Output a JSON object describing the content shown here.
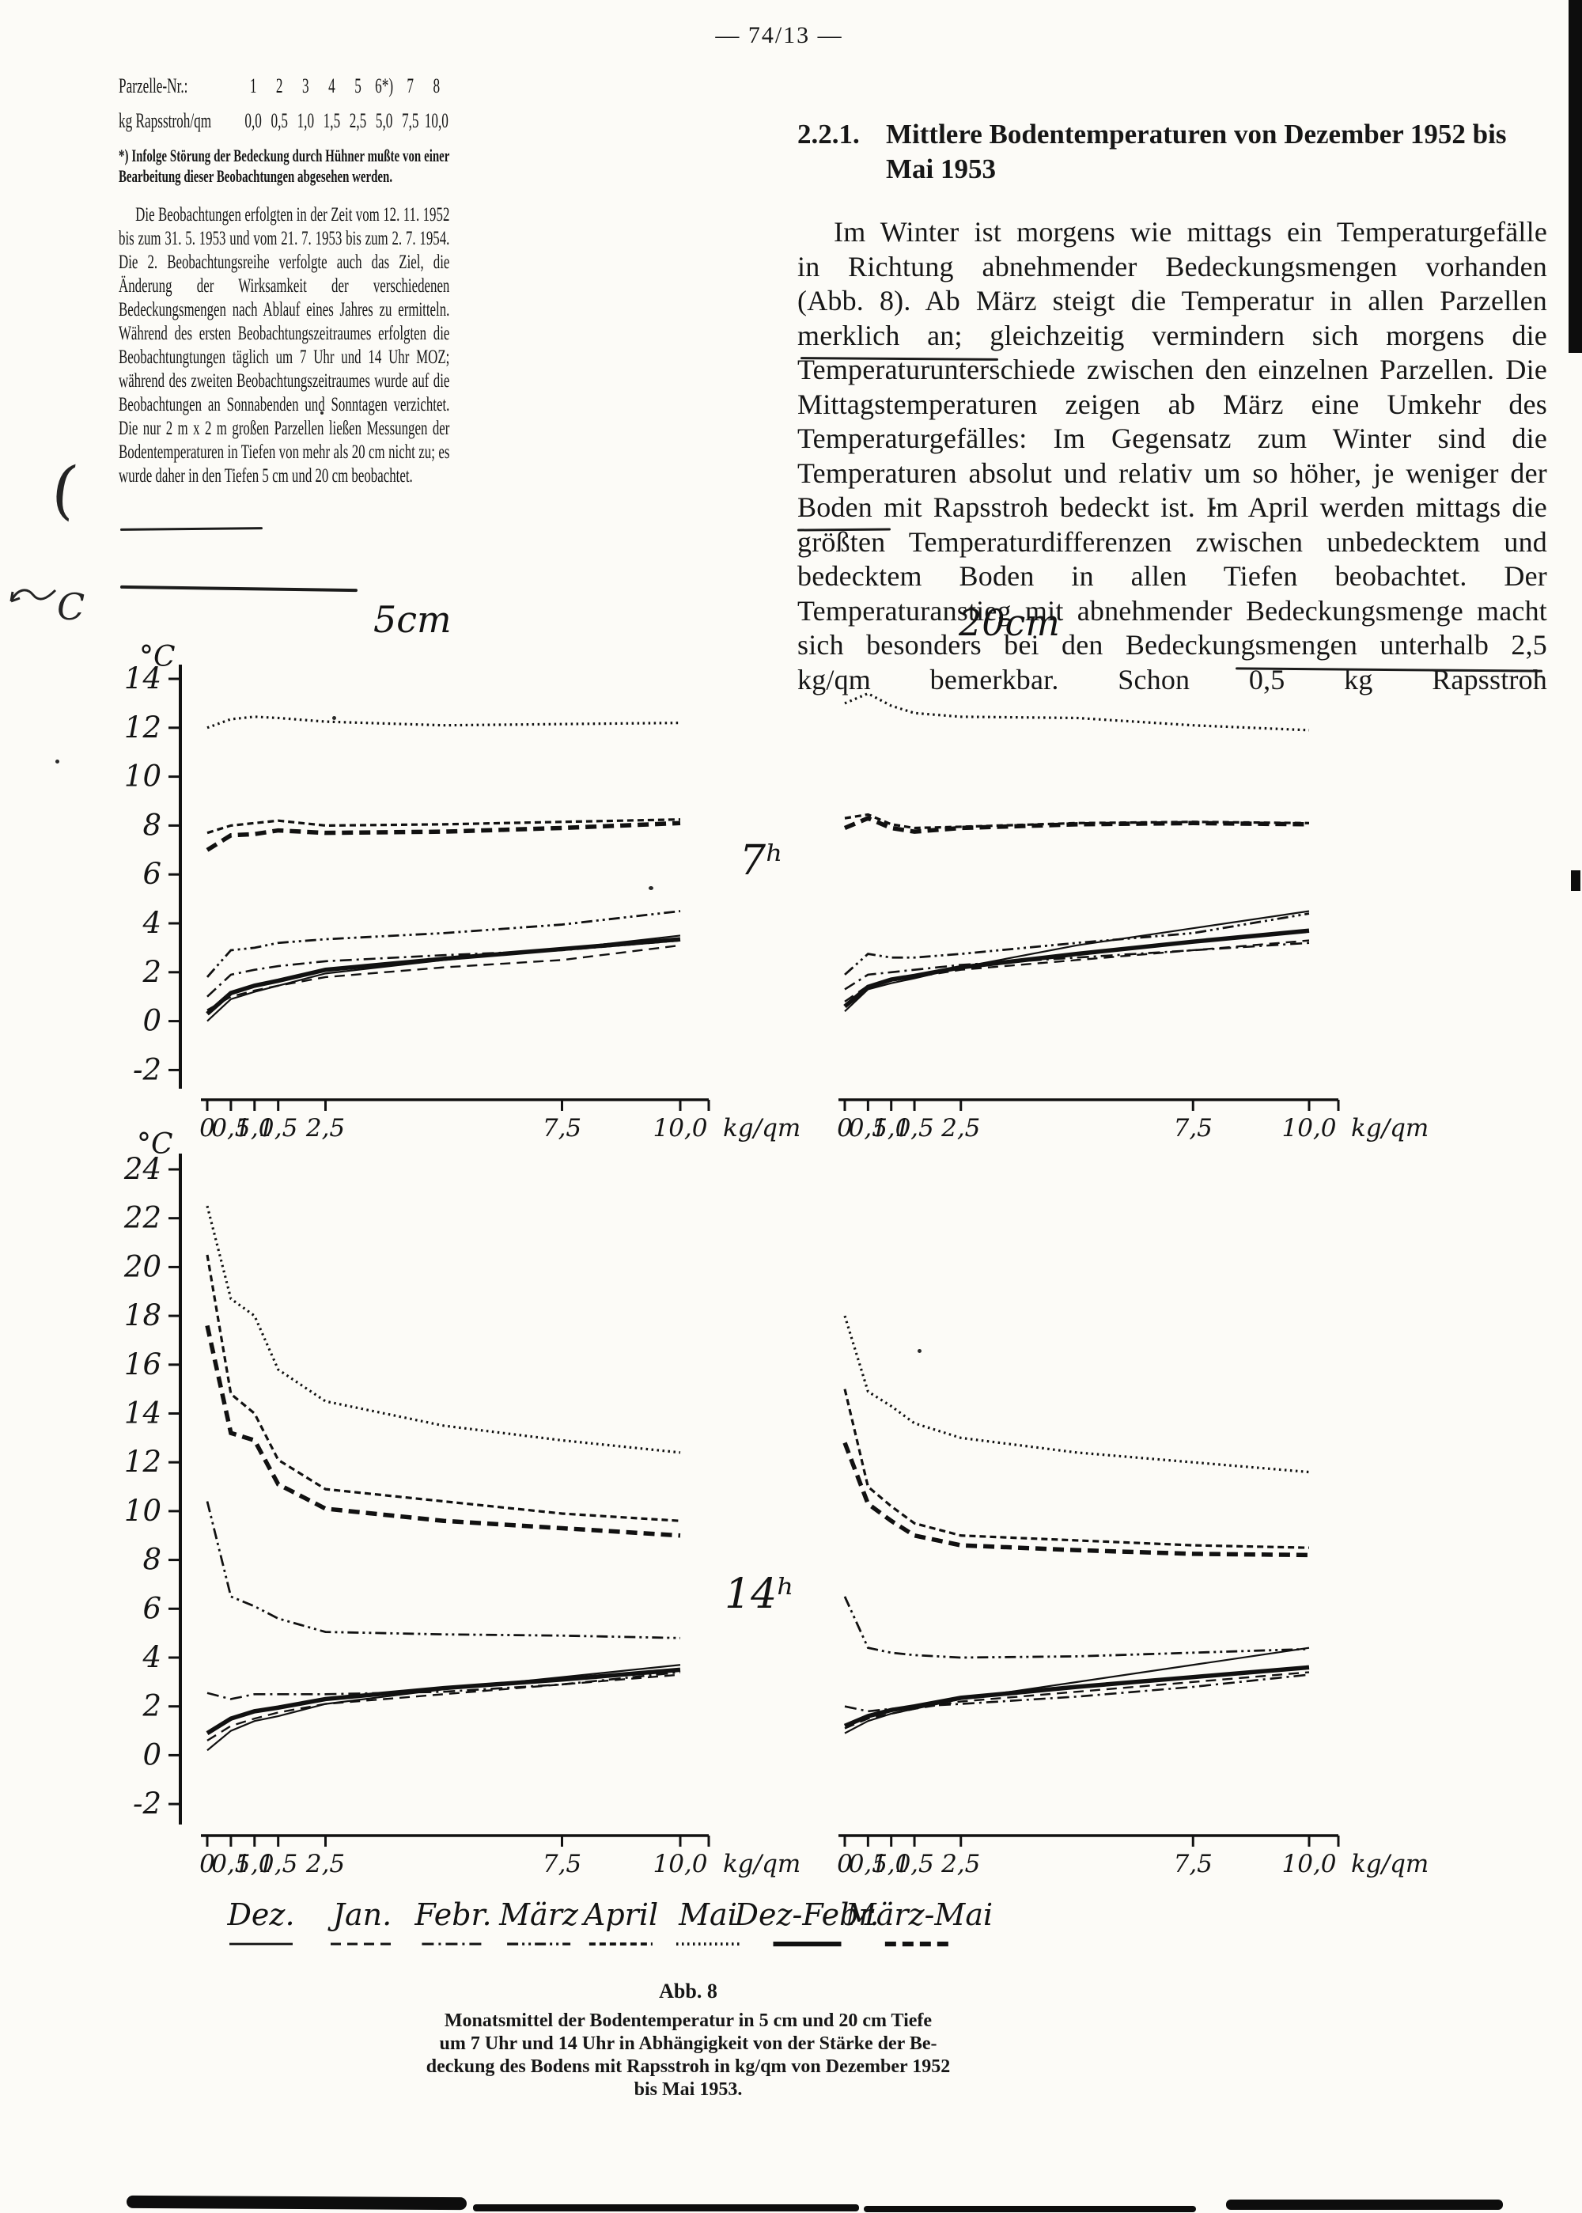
{
  "page": {
    "header": "— 74/13 —"
  },
  "intro_table": {
    "row1_label": "Parzelle-Nr.:",
    "row1_values": [
      "1",
      "2",
      "3",
      "4",
      "5",
      "6*)",
      "7",
      "8"
    ],
    "row2_label": "kg Rapsstroh/qm",
    "row2_values": [
      "0,0",
      "0,5",
      "1,0",
      "1,5",
      "2,5",
      "5,0",
      "7,5",
      "10,0"
    ]
  },
  "left_column": {
    "footnote": "*) Infolge Störung der Bedeckung durch Hühner mußte von einer Bearbeitung dieser Beobachtungen abgesehen werden.",
    "paragraph": "Die Beobachtungen erfolgten in der Zeit vom 12. 11. 1952 bis zum 31. 5. 1953 und vom 21. 7. 1953 bis zum 2. 7. 1954. Die 2. Beobachtungsreihe verfolgte auch das Ziel, die Änderung der Wirksamkeit der verschiedenen Bedeckungsmengen nach Ablauf eines Jahres zu ermitteln. Während des ersten Beobachtungszeitraumes erfolgten die Beobachtungtungen täglich um 7 Uhr und 14 Uhr MOZ; während des zweiten Beobachtungszeitraumes wurde auf die Beobachtungen an Sonnabenden und Sonntagen verzichtet. Die nur 2 m x 2 m großen Parzellen ließen Messungen der Bodentemperaturen in Tiefen von mehr als 20 cm nicht zu; es wurde daher in den Tiefen 5 cm und 20 cm beobachtet."
  },
  "right_column": {
    "section_number": "2.2.1.",
    "section_title": "Mittlere Bodentemperaturen von Dezember 1952 bis Mai 1953",
    "paragraph": "Im Winter ist morgens wie mittags ein Temperaturgefälle in Richtung abnehmender Bedeckungsmengen vorhanden (Abb. 8). Ab März steigt die Temperatur in allen Parzellen merklich an; gleichzeitig vermindern sich morgens die Temperaturunterschiede zwischen den einzelnen Parzellen. Die Mittagstemperaturen zeigen ab März eine Umkehr des Temperaturgefälles: Im Gegensatz zum Winter sind die Temperaturen absolut und relativ um so höher, je weniger der Boden mit Rapsstroh bedeckt ist. Im April werden mittags die größten Temperaturdifferenzen zwischen unbedecktem und bedecktem Boden in allen Tiefen beobachtet. Der Temperaturanstieg mit abnehmender Bedeckungsmenge macht sich besonders bei den Bedeckungsmengen unterhalb 2,5 kg/qm bemerkbar. Schon 0,5 kg Rapsstroh"
  },
  "figure": {
    "depth_title_left": "5cm",
    "depth_title_right": "20cm",
    "time_label_top": "7ʰ",
    "time_label_bottom": "14ʰ",
    "y_unit_top_left": "°C",
    "y_unit_bottom_left": "°C",
    "x_unit": "kg/qm",
    "x_tick_labels": [
      "0",
      "0,5",
      "1,0",
      "1,5",
      "2,5",
      "7,5",
      "10,0"
    ],
    "x_tick_values": [
      0,
      0.5,
      1,
      1.5,
      2.5,
      7.5,
      10
    ]
  },
  "legend": {
    "items": [
      {
        "label": "Dez.",
        "dash": "",
        "width": 2.2
      },
      {
        "label": "Jan.",
        "dash": "13 8",
        "width": 2.4
      },
      {
        "label": "Febr.",
        "dash": "15 6 3 6",
        "width": 2.6
      },
      {
        "label": "März",
        "dash": "14 5 3 5 3 5",
        "width": 2.8
      },
      {
        "label": "April",
        "dash": "8 5",
        "width": 3.2
      },
      {
        "label": "Mai",
        "dash": "2.5 4.5",
        "width": 3.2
      },
      {
        "label": "Dez-Febr.",
        "dash": "",
        "width": 5.5
      },
      {
        "label": "März-Mai",
        "dash": "14 8",
        "width": 5.5
      }
    ]
  },
  "caption": {
    "fig_label": "Abb. 8",
    "lines": [
      "Monatsmittel der Bodentemperatur in 5 cm und 20 cm Tiefe",
      "um 7 Uhr und 14 Uhr in Abhängigkeit von der Stärke der Be-",
      "deckung des Bodens mit Rapsstroh in kg/qm von Dezember 1952",
      "bis Mai 1953."
    ]
  },
  "chart_data": [
    {
      "type": "line",
      "title": "5cm 7ʰ",
      "xlabel": "kg Rapsstroh/qm",
      "ylabel": "°C",
      "xlim": [
        0,
        10
      ],
      "ylim": [
        -2,
        14
      ],
      "x": [
        0,
        0.5,
        1,
        1.5,
        2.5,
        5,
        7.5,
        10
      ],
      "yticks": [
        14,
        12,
        10,
        8,
        6,
        4,
        2,
        0,
        -2
      ],
      "series": [
        {
          "name": "Dez.",
          "values": [
            0.0,
            0.9,
            1.2,
            1.45,
            1.95,
            2.5,
            2.95,
            3.5
          ]
        },
        {
          "name": "Jan.",
          "values": [
            0.45,
            1.0,
            1.25,
            1.45,
            1.8,
            2.2,
            2.5,
            3.1
          ]
        },
        {
          "name": "Febr.",
          "values": [
            1.0,
            1.9,
            2.1,
            2.25,
            2.45,
            2.7,
            2.9,
            3.3
          ]
        },
        {
          "name": "März",
          "values": [
            1.8,
            2.9,
            3.0,
            3.2,
            3.35,
            3.6,
            3.95,
            4.5
          ]
        },
        {
          "name": "April",
          "values": [
            7.7,
            8.0,
            8.1,
            8.2,
            8.0,
            8.05,
            8.15,
            8.25
          ]
        },
        {
          "name": "Mai",
          "values": [
            12.0,
            12.35,
            12.45,
            12.4,
            12.25,
            12.1,
            12.15,
            12.2
          ]
        },
        {
          "name": "Dez-Febr.",
          "values": [
            0.3,
            1.15,
            1.45,
            1.65,
            2.1,
            2.55,
            2.95,
            3.35
          ]
        },
        {
          "name": "März-Mai",
          "values": [
            7.0,
            7.6,
            7.65,
            7.8,
            7.7,
            7.75,
            7.9,
            8.1
          ]
        }
      ]
    },
    {
      "type": "line",
      "title": "20cm 7ʰ",
      "xlabel": "kg Rapsstroh/qm",
      "ylabel": "°C",
      "xlim": [
        0,
        10
      ],
      "ylim": [
        -2,
        14
      ],
      "x": [
        0,
        0.5,
        1,
        1.5,
        2.5,
        5,
        7.5,
        10
      ],
      "yticks": [
        14,
        12,
        10,
        8,
        6,
        4,
        2,
        0,
        -2
      ],
      "series": [
        {
          "name": "Dez.",
          "values": [
            0.4,
            1.3,
            1.55,
            1.75,
            2.2,
            3.1,
            3.8,
            4.5
          ]
        },
        {
          "name": "Jan.",
          "values": [
            0.8,
            1.45,
            1.65,
            1.8,
            2.1,
            2.5,
            2.9,
            3.3
          ]
        },
        {
          "name": "Febr.",
          "values": [
            1.3,
            1.9,
            2.0,
            2.1,
            2.3,
            2.6,
            2.9,
            3.2
          ]
        },
        {
          "name": "März",
          "values": [
            1.9,
            2.75,
            2.6,
            2.6,
            2.75,
            3.2,
            3.6,
            4.4
          ]
        },
        {
          "name": "April",
          "values": [
            8.3,
            8.45,
            8.05,
            7.9,
            7.95,
            8.1,
            8.15,
            8.1
          ]
        },
        {
          "name": "Mai",
          "values": [
            13.0,
            13.4,
            12.9,
            12.6,
            12.45,
            12.4,
            12.1,
            11.9
          ]
        },
        {
          "name": "Dez-Febr.",
          "values": [
            0.6,
            1.4,
            1.7,
            1.85,
            2.2,
            2.75,
            3.25,
            3.7
          ]
        },
        {
          "name": "März-Mai",
          "values": [
            7.9,
            8.3,
            7.9,
            7.75,
            7.9,
            8.05,
            8.1,
            8.05
          ]
        }
      ]
    },
    {
      "type": "line",
      "title": "5cm 14ʰ",
      "xlabel": "kg Rapsstroh/qm",
      "ylabel": "°C",
      "xlim": [
        0,
        10
      ],
      "ylim": [
        -2,
        24
      ],
      "x": [
        0,
        0.5,
        1,
        1.5,
        2.5,
        5,
        7.5,
        10
      ],
      "yticks": [
        24,
        22,
        20,
        18,
        16,
        14,
        12,
        10,
        8,
        6,
        4,
        2,
        0,
        -2
      ],
      "series": [
        {
          "name": "Dez.",
          "values": [
            0.2,
            1.0,
            1.4,
            1.6,
            2.1,
            2.7,
            3.2,
            3.7
          ]
        },
        {
          "name": "Jan.",
          "values": [
            0.6,
            1.2,
            1.5,
            1.75,
            2.1,
            2.5,
            2.9,
            3.3
          ]
        },
        {
          "name": "Febr.",
          "values": [
            2.55,
            2.3,
            2.5,
            2.5,
            2.5,
            2.6,
            2.9,
            3.4
          ]
        },
        {
          "name": "März",
          "values": [
            10.4,
            6.5,
            6.1,
            5.6,
            5.05,
            4.95,
            4.9,
            4.8
          ]
        },
        {
          "name": "April",
          "values": [
            20.5,
            14.8,
            14.0,
            12.1,
            10.9,
            10.4,
            9.9,
            9.6
          ]
        },
        {
          "name": "Mai",
          "values": [
            22.5,
            18.7,
            18.0,
            15.8,
            14.5,
            13.5,
            12.9,
            12.4
          ]
        },
        {
          "name": "Dez-Febr.",
          "values": [
            0.9,
            1.5,
            1.8,
            1.95,
            2.3,
            2.75,
            3.1,
            3.5
          ]
        },
        {
          "name": "März-Mai",
          "values": [
            17.6,
            13.2,
            12.9,
            11.1,
            10.1,
            9.6,
            9.3,
            9.0
          ]
        }
      ]
    },
    {
      "type": "line",
      "title": "20cm 14ʰ",
      "xlabel": "kg Rapsstroh/qm",
      "ylabel": "°C",
      "xlim": [
        0,
        10
      ],
      "ylim": [
        -2,
        24
      ],
      "x": [
        0,
        0.5,
        1,
        1.5,
        2.5,
        5,
        7.5,
        10
      ],
      "yticks": [
        24,
        22,
        20,
        18,
        16,
        14,
        12,
        10,
        8,
        6,
        4,
        2,
        0,
        -2
      ],
      "series": [
        {
          "name": "Dez.",
          "values": [
            0.9,
            1.4,
            1.7,
            1.9,
            2.3,
            3.0,
            3.7,
            4.4
          ]
        },
        {
          "name": "Jan.",
          "values": [
            1.1,
            1.5,
            1.7,
            1.9,
            2.2,
            2.6,
            3.0,
            3.4
          ]
        },
        {
          "name": "Febr.",
          "values": [
            2.0,
            1.8,
            1.9,
            2.0,
            2.1,
            2.4,
            2.8,
            3.3
          ]
        },
        {
          "name": "März",
          "values": [
            6.5,
            4.4,
            4.2,
            4.1,
            4.0,
            4.05,
            4.2,
            4.35
          ]
        },
        {
          "name": "April",
          "values": [
            15.0,
            11.0,
            10.2,
            9.5,
            9.0,
            8.8,
            8.6,
            8.5
          ]
        },
        {
          "name": "Mai",
          "values": [
            18.0,
            14.9,
            14.3,
            13.6,
            13.0,
            12.4,
            12.0,
            11.6
          ]
        },
        {
          "name": "Dez-Febr.",
          "values": [
            1.2,
            1.6,
            1.85,
            2.0,
            2.35,
            2.8,
            3.2,
            3.6
          ]
        },
        {
          "name": "März-Mai",
          "values": [
            12.8,
            10.3,
            9.6,
            9.0,
            8.6,
            8.4,
            8.25,
            8.2
          ]
        }
      ]
    }
  ]
}
